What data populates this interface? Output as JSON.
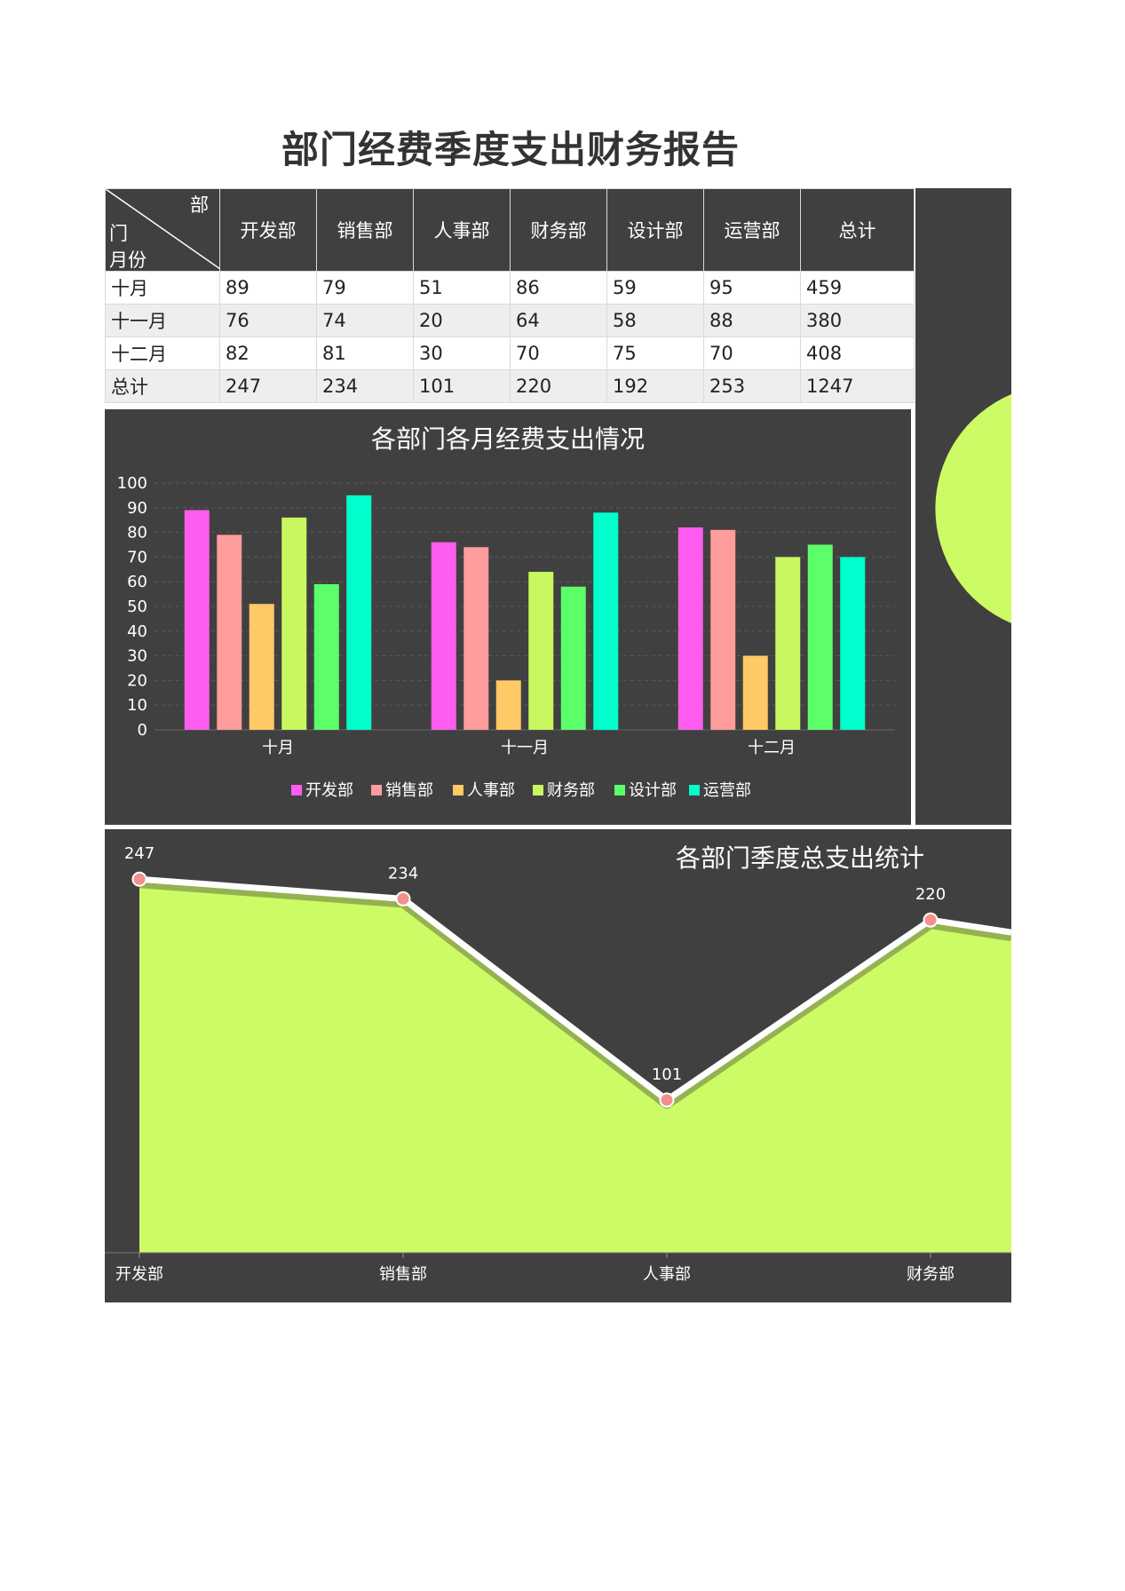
{
  "title": "部门经费季度支出财务报告",
  "table": {
    "corner": {
      "top": "部",
      "middle": "门",
      "bottom": "月份"
    },
    "headers": [
      "开发部",
      "销售部",
      "人事部",
      "财务部",
      "设计部",
      "运营部",
      "总计"
    ],
    "rows": [
      {
        "label": "十月",
        "values": [
          "89",
          "79",
          "51",
          "86",
          "59",
          "95",
          "459"
        ]
      },
      {
        "label": "十一月",
        "values": [
          "76",
          "74",
          "20",
          "64",
          "58",
          "88",
          "380"
        ]
      },
      {
        "label": "十二月",
        "values": [
          "82",
          "81",
          "30",
          "70",
          "75",
          "70",
          "408"
        ]
      },
      {
        "label": "总计",
        "values": [
          "247",
          "234",
          "101",
          "220",
          "192",
          "253",
          "1247"
        ]
      }
    ]
  },
  "chart_data": [
    {
      "type": "bar",
      "title": "各部门各月经费支出情况",
      "categories": [
        "十月",
        "十一月",
        "十二月"
      ],
      "ylim": [
        0,
        100
      ],
      "yticks": [
        0,
        10,
        20,
        30,
        40,
        50,
        60,
        70,
        80,
        90,
        100
      ],
      "grid": true,
      "legend_position": "bottom",
      "series": [
        {
          "name": "开发部",
          "values": [
            89,
            76,
            82
          ],
          "color": "#ff5cf0"
        },
        {
          "name": "销售部",
          "values": [
            79,
            74,
            81
          ],
          "color": "#ff9c9c"
        },
        {
          "name": "人事部",
          "values": [
            51,
            20,
            30
          ],
          "color": "#ffc966"
        },
        {
          "name": "财务部",
          "values": [
            86,
            64,
            70
          ],
          "color": "#c9f75f"
        },
        {
          "name": "设计部",
          "values": [
            59,
            58,
            75
          ],
          "color": "#5cff6a"
        },
        {
          "name": "运营部",
          "values": [
            95,
            88,
            70
          ],
          "color": "#00ffcc"
        }
      ]
    },
    {
      "type": "area",
      "title": "各部门季度总支出统计",
      "categories": [
        "开发部",
        "销售部",
        "人事部",
        "财务部"
      ],
      "values": [
        247,
        234,
        101,
        220
      ],
      "ylim": [
        0,
        280
      ],
      "fill_color": "#ccfb66",
      "line_color": "#ffffff",
      "marker_color": "#f4908c"
    }
  ]
}
